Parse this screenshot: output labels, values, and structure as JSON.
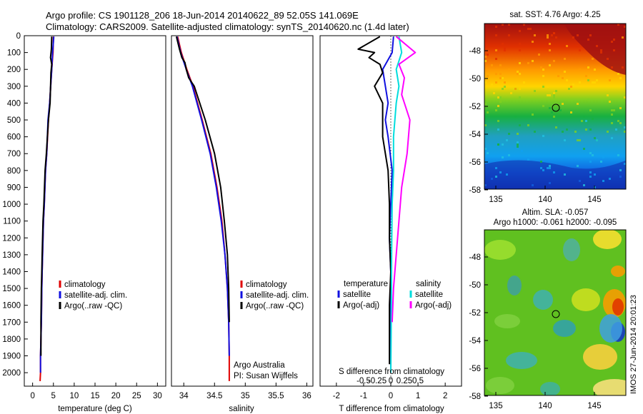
{
  "header": {
    "line1": "Argo profile: CS 1901128_206 18-Jun-2014 20140622_89 52.05S 141.069E",
    "line2": "Climatology: CARS2009. Satellite-adjusted climatology: synTS_20140620.nc (1.4d later)"
  },
  "side_label": "IMOS 27-Jun-2014 20:01:23",
  "colors": {
    "climatology": "#e00000",
    "satellite": "#1010e0",
    "argo": "#000000",
    "sat_salinity": "#00dddd",
    "argo_salinity": "#ff00ff"
  },
  "chart_data": [
    {
      "type": "line",
      "id": "temperature",
      "xlabel": "temperature (deg C)",
      "xlim": [
        -2,
        32
      ],
      "xticks": [
        "0",
        "5",
        "10",
        "15",
        "20",
        "25",
        "30"
      ],
      "ylim": [
        0,
        2080
      ],
      "yticks": [
        "0",
        "100",
        "200",
        "300",
        "400",
        "500",
        "600",
        "700",
        "800",
        "900",
        "1000",
        "1100",
        "1200",
        "1300",
        "1400",
        "1500",
        "1600",
        "1700",
        "1800",
        "1900",
        "2000"
      ],
      "legend": {
        "position": "center-right",
        "entries": [
          "climatology",
          "satellite-adj. clim.",
          "Argo(..raw -QC)"
        ]
      },
      "series": [
        {
          "name": "climatology",
          "color": "climatology",
          "x": [
            5.0,
            4.9,
            4.6,
            4.1,
            3.8,
            3.4,
            3.1,
            2.8,
            2.6,
            2.4,
            2.3,
            2.2,
            2.1,
            2.0,
            1.9,
            1.9,
            1.8
          ],
          "y": [
            5,
            100,
            200,
            400,
            500,
            700,
            800,
            1000,
            1100,
            1300,
            1400,
            1500,
            1700,
            1800,
            1900,
            2000,
            2050
          ]
        },
        {
          "name": "satellite-adj. clim.",
          "color": "satellite",
          "x": [
            5.1,
            4.8,
            4.6,
            4.1,
            3.7,
            3.4,
            3.1,
            2.8,
            2.6,
            2.4,
            2.3,
            2.2,
            2.1,
            2.0,
            1.9,
            1.9
          ],
          "y": [
            5,
            100,
            200,
            400,
            500,
            700,
            800,
            1000,
            1100,
            1300,
            1400,
            1500,
            1700,
            1800,
            1900,
            2000
          ]
        },
        {
          "name": "Argo(..raw -QC)",
          "color": "argo",
          "x": [
            4.6,
            4.5,
            4.3,
            4.6,
            4.4,
            4.2,
            3.8,
            3.3,
            3.0,
            2.7,
            2.5,
            2.3,
            2.2,
            2.1,
            2.0,
            2.0
          ],
          "y": [
            5,
            80,
            130,
            170,
            220,
            400,
            500,
            700,
            800,
            1000,
            1100,
            1300,
            1400,
            1500,
            1700,
            1900
          ]
        }
      ]
    },
    {
      "type": "line",
      "id": "salinity",
      "xlabel": "salinity",
      "xlim": [
        33.8,
        36.1
      ],
      "xticks": [
        "34",
        "34.5",
        "35",
        "35.5",
        "36"
      ],
      "ylim": [
        0,
        2080
      ],
      "legend": {
        "position": "center-right",
        "entries": [
          "climatology",
          "satellite-adj. clim.",
          "Argo(..raw -QC)"
        ]
      },
      "annotation": [
        "Argo Australia",
        "PI: Susan Wijffels"
      ],
      "series": [
        {
          "name": "climatology",
          "color": "climatology",
          "x": [
            33.9,
            33.96,
            34.05,
            34.15,
            34.3,
            34.44,
            34.54,
            34.62,
            34.67,
            34.71,
            34.73,
            34.74,
            34.74
          ],
          "y": [
            5,
            100,
            200,
            300,
            500,
            700,
            900,
            1100,
            1300,
            1500,
            1700,
            1900,
            2050
          ]
        },
        {
          "name": "satellite-adj. clim.",
          "color": "satellite",
          "x": [
            33.89,
            33.95,
            34.04,
            34.14,
            34.29,
            34.43,
            34.53,
            34.61,
            34.67,
            34.71,
            34.73,
            34.74
          ],
          "y": [
            5,
            100,
            200,
            300,
            500,
            700,
            900,
            1100,
            1300,
            1500,
            1700,
            1900
          ]
        },
        {
          "name": "Argo(..raw -QC)",
          "color": "argo",
          "x": [
            33.88,
            33.93,
            33.97,
            34.02,
            34.04,
            34.08,
            34.17,
            34.35,
            34.5,
            34.6,
            34.66,
            34.71,
            34.73,
            34.74
          ],
          "y": [
            5,
            80,
            130,
            160,
            200,
            250,
            300,
            500,
            700,
            900,
            1100,
            1300,
            1500,
            1700
          ]
        }
      ]
    },
    {
      "type": "line",
      "id": "difference",
      "xlabel": "T difference from climatology",
      "xlabel_top": "S difference from climatology",
      "xlim": [
        -2.6,
        2.6
      ],
      "xticks": [
        "-2",
        "-1",
        "0",
        "1",
        "2"
      ],
      "xticks_top": [
        "-0.5",
        "-0.25",
        "0",
        "0.25",
        "0.5"
      ],
      "ylim": [
        0,
        2080
      ],
      "legend": {
        "position": "center",
        "temperature_title": "temperature",
        "salinity_title": "salinity",
        "entries": [
          "satellite",
          "Argo(-adj)",
          "satellite",
          "Argo(-adj)"
        ]
      },
      "series": [
        {
          "name": "temperature satellite",
          "color": "satellite",
          "x": [
            0.1,
            0.05,
            -0.3,
            -0.2,
            -0.1,
            -0.2,
            -0.1,
            0.05,
            0.0,
            -0.05,
            0.0,
            0.0,
            0.0,
            0.0
          ],
          "y": [
            5,
            100,
            200,
            300,
            400,
            500,
            600,
            800,
            1000,
            1200,
            1400,
            1600,
            1800,
            2000
          ]
        },
        {
          "name": "temperature Argo(-adj)",
          "color": "argo",
          "x": [
            -0.4,
            -1.2,
            -0.6,
            -0.8,
            -0.4,
            -0.3,
            -0.6,
            -0.3,
            -0.3,
            -0.1,
            -0.05,
            -0.05,
            0.0,
            -0.05,
            -0.05,
            -0.05
          ],
          "y": [
            5,
            80,
            100,
            130,
            170,
            220,
            300,
            400,
            600,
            800,
            1000,
            1200,
            1400,
            1600,
            1800,
            1950
          ]
        },
        {
          "name": "salinity satellite",
          "color": "sat_salinity",
          "x": [
            0.3,
            0.4,
            0.2,
            0.3,
            0.2,
            0.1,
            0.1,
            0.05,
            0.03,
            0.02,
            0.0
          ],
          "y": [
            5,
            100,
            200,
            300,
            400,
            600,
            800,
            1000,
            1300,
            1600,
            2000
          ]
        },
        {
          "name": "salinity Argo(-adj)",
          "color": "argo_salinity",
          "x": [
            0.2,
            0.9,
            0.3,
            0.5,
            0.4,
            0.7,
            0.6,
            0.4,
            0.3,
            0.2,
            0.1,
            0.05
          ],
          "y": [
            5,
            100,
            170,
            250,
            350,
            500,
            700,
            900,
            1100,
            1300,
            1500,
            1700
          ]
        }
      ]
    },
    {
      "type": "heatmap",
      "id": "sst_map",
      "title": "sat. SST: 4.76 Argo: 4.25",
      "xticks": [
        "135",
        "140",
        "145"
      ],
      "yticks": [
        "-48",
        "-50",
        "-52",
        "-54",
        "-56",
        "-58"
      ],
      "marker": {
        "lon": 141.07,
        "lat": -52.05
      }
    },
    {
      "type": "heatmap",
      "id": "sla_map",
      "title": "Altim. SLA: -0.057",
      "subtitle": "Argo h1000: -0.061 h2000: -0.095",
      "xticks": [
        "135",
        "140",
        "145"
      ],
      "yticks": [
        "-48",
        "-50",
        "-52",
        "-54",
        "-56",
        "-58"
      ],
      "marker": {
        "lon": 141.07,
        "lat": -52.05
      }
    }
  ]
}
